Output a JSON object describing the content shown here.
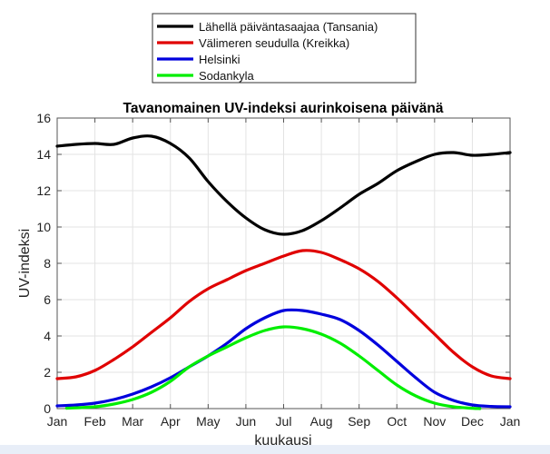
{
  "chart_data": {
    "type": "line",
    "title": "Tavanomainen UV-indeksi aurinkoisena päivänä",
    "xlabel": "kuukausi",
    "ylabel": "UV-indeksi",
    "xlim": [
      0,
      12
    ],
    "ylim": [
      0,
      16
    ],
    "grid": true,
    "legend_position": "top-outside",
    "x_tick_labels": [
      "Jan",
      "Feb",
      "Mar",
      "Apr",
      "May",
      "Jun",
      "Jul",
      "Aug",
      "Sep",
      "Oct",
      "Nov",
      "Dec",
      "Jan"
    ],
    "y_ticks": [
      0,
      2,
      4,
      6,
      8,
      10,
      12,
      14,
      16
    ],
    "series": [
      {
        "name": "Lähellä päiväntasaajaa (Tansania)",
        "color": "#000000",
        "x": [
          0,
          0.5,
          1,
          1.5,
          2,
          2.5,
          3,
          3.5,
          4,
          4.5,
          5,
          5.5,
          6,
          6.5,
          7,
          7.5,
          8,
          8.5,
          9,
          9.5,
          10,
          10.5,
          11,
          11.5,
          12
        ],
        "y": [
          14.45,
          14.55,
          14.6,
          14.55,
          14.9,
          15.0,
          14.6,
          13.8,
          12.5,
          11.4,
          10.5,
          9.85,
          9.6,
          9.8,
          10.35,
          11.05,
          11.8,
          12.4,
          13.1,
          13.6,
          14.0,
          14.1,
          13.95,
          14.0,
          14.1
        ]
      },
      {
        "name": "Välimeren seudulla (Kreikka)",
        "color": "#e00000",
        "x": [
          0,
          0.5,
          1,
          1.5,
          2,
          2.5,
          3,
          3.5,
          4,
          4.5,
          5,
          5.5,
          6,
          6.5,
          7,
          7.5,
          8,
          8.5,
          9,
          9.5,
          10,
          10.5,
          11,
          11.5,
          12
        ],
        "y": [
          1.65,
          1.75,
          2.1,
          2.7,
          3.4,
          4.2,
          5.0,
          5.9,
          6.6,
          7.1,
          7.6,
          8.0,
          8.4,
          8.7,
          8.6,
          8.2,
          7.7,
          7.0,
          6.1,
          5.1,
          4.1,
          3.1,
          2.3,
          1.8,
          1.65
        ]
      },
      {
        "name": "Helsinki",
        "color": "#0000dd",
        "x": [
          0,
          0.5,
          1,
          1.5,
          2,
          2.5,
          3,
          3.5,
          4,
          4.5,
          5,
          5.5,
          6,
          6.5,
          7,
          7.5,
          8,
          8.5,
          9,
          9.5,
          10,
          10.5,
          11,
          11.5,
          12
        ],
        "y": [
          0.15,
          0.2,
          0.3,
          0.5,
          0.8,
          1.2,
          1.7,
          2.3,
          2.9,
          3.6,
          4.4,
          5.0,
          5.4,
          5.4,
          5.2,
          4.9,
          4.3,
          3.5,
          2.6,
          1.7,
          0.9,
          0.45,
          0.2,
          0.12,
          0.1
        ]
      },
      {
        "name": "Sodankyla",
        "color": "#00ee00",
        "x": [
          0.25,
          1,
          1.5,
          2,
          2.5,
          3,
          3.5,
          4,
          4.5,
          5,
          5.5,
          6,
          6.5,
          7,
          7.5,
          8,
          8.5,
          9,
          9.5,
          10,
          10.5,
          11,
          11.2
        ],
        "y": [
          0.02,
          0.1,
          0.25,
          0.5,
          0.9,
          1.5,
          2.3,
          2.9,
          3.4,
          3.9,
          4.3,
          4.5,
          4.4,
          4.1,
          3.6,
          2.9,
          2.1,
          1.3,
          0.7,
          0.3,
          0.1,
          0.02,
          0.0
        ]
      }
    ]
  }
}
